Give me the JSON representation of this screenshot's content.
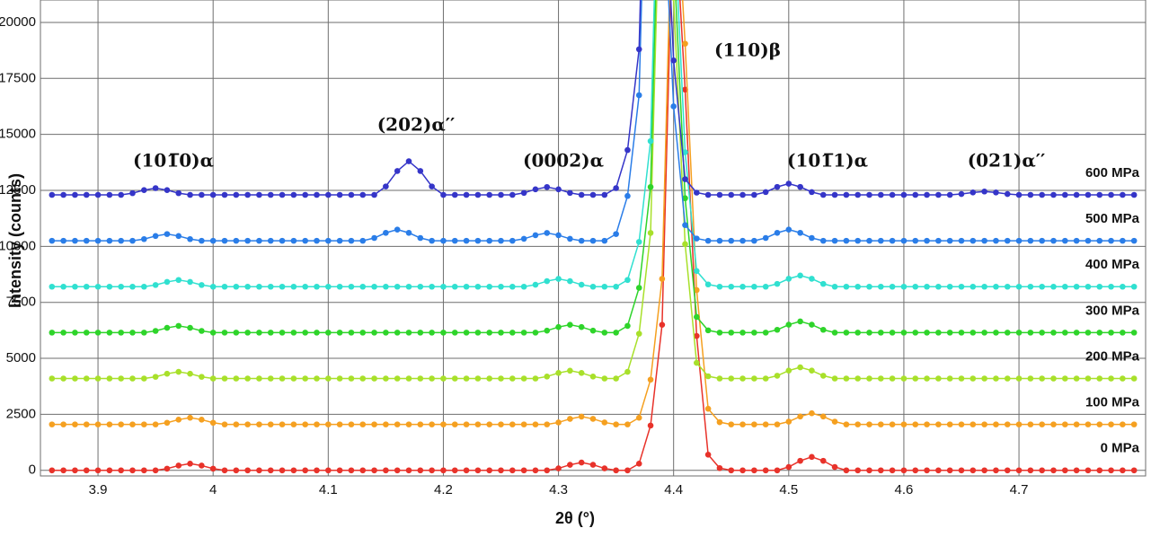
{
  "chart_data": {
    "type": "line",
    "x_label": "2θ (°)",
    "y_label": "Intensity (counts)",
    "annotations": [
      "(101̅0)α",
      "(202)α′′",
      "(0002)α",
      "(110)β",
      "(101̅1)α",
      "(021)α′′"
    ],
    "xlim": [
      3.85,
      4.81
    ],
    "ylim": [
      -250,
      21000
    ],
    "xticks": [
      3.9,
      4,
      4.1,
      4.2,
      4.3,
      4.4,
      4.5,
      4.6,
      4.7
    ],
    "yticks": [
      0,
      2500,
      5000,
      7500,
      10000,
      12500,
      15000,
      17500,
      20000
    ],
    "grid": true,
    "x": [
      3.86,
      3.87,
      3.88,
      3.89,
      3.9,
      3.91,
      3.92,
      3.93,
      3.94,
      3.95,
      3.96,
      3.97,
      3.98,
      3.99,
      4,
      4.01,
      4.02,
      4.03,
      4.04,
      4.05,
      4.06,
      4.07,
      4.08,
      4.09,
      4.1,
      4.11,
      4.12,
      4.13,
      4.14,
      4.15,
      4.16,
      4.17,
      4.18,
      4.19,
      4.2,
      4.21,
      4.22,
      4.23,
      4.24,
      4.25,
      4.26,
      4.27,
      4.28,
      4.29,
      4.3,
      4.31,
      4.32,
      4.33,
      4.34,
      4.35,
      4.36,
      4.37,
      4.38,
      4.39,
      4.4,
      4.41,
      4.42,
      4.43,
      4.44,
      4.45,
      4.46,
      4.47,
      4.48,
      4.49,
      4.5,
      4.51,
      4.52,
      4.53,
      4.54,
      4.55,
      4.56,
      4.57,
      4.58,
      4.59,
      4.6,
      4.61,
      4.62,
      4.63,
      4.64,
      4.65,
      4.66,
      4.67,
      4.68,
      4.69,
      4.7,
      4.71,
      4.72,
      4.73,
      4.74,
      4.75,
      4.76,
      4.77,
      4.78,
      4.79,
      4.8
    ],
    "series": [
      {
        "name": "0 MPa",
        "color": "#e8322a",
        "values": [
          0,
          0,
          0,
          0,
          0,
          0,
          0,
          0,
          0,
          0,
          75,
          213,
          300,
          213,
          75,
          0,
          0,
          0,
          0,
          0,
          0,
          0,
          0,
          0,
          0,
          0,
          0,
          0,
          0,
          0,
          0,
          0,
          0,
          0,
          0,
          0,
          0,
          0,
          0,
          0,
          0,
          0,
          0,
          0,
          88,
          248,
          350,
          248,
          88,
          0,
          0,
          300,
          2000,
          6500,
          26000,
          17000,
          6000,
          700,
          100,
          0,
          0,
          0,
          0,
          0,
          150,
          426,
          600,
          426,
          150,
          0,
          0,
          0,
          0,
          0,
          0,
          0,
          0,
          0,
          0,
          0,
          0,
          0,
          0,
          0,
          0,
          0,
          0,
          0,
          0,
          0,
          0,
          0,
          0,
          0,
          0
        ]
      },
      {
        "name": "100 MPa",
        "color": "#f5a020",
        "values": [
          2050,
          2050,
          2050,
          2050,
          2050,
          2050,
          2050,
          2050,
          2050,
          2050,
          2125,
          2263,
          2350,
          2263,
          2125,
          2050,
          2050,
          2050,
          2050,
          2050,
          2050,
          2050,
          2050,
          2050,
          2050,
          2050,
          2050,
          2050,
          2050,
          2050,
          2050,
          2050,
          2050,
          2050,
          2050,
          2050,
          2050,
          2050,
          2050,
          2050,
          2050,
          2050,
          2050,
          2050,
          2138,
          2298,
          2400,
          2298,
          2138,
          2050,
          2050,
          2350,
          4050,
          8550,
          28050,
          19050,
          8050,
          2750,
          2150,
          2050,
          2050,
          2050,
          2050,
          2050,
          2175,
          2405,
          2550,
          2405,
          2175,
          2050,
          2050,
          2050,
          2050,
          2050,
          2050,
          2050,
          2050,
          2050,
          2050,
          2050,
          2050,
          2050,
          2050,
          2050,
          2050,
          2050,
          2050,
          2050,
          2050,
          2050,
          2050,
          2050,
          2050,
          2050,
          2050
        ]
      },
      {
        "name": "200 MPa",
        "color": "#a8e02a",
        "values": [
          4100,
          4100,
          4100,
          4100,
          4100,
          4100,
          4100,
          4100,
          4100,
          4175,
          4313,
          4400,
          4313,
          4175,
          4100,
          4100,
          4100,
          4100,
          4100,
          4100,
          4100,
          4100,
          4100,
          4100,
          4100,
          4100,
          4100,
          4100,
          4100,
          4100,
          4100,
          4100,
          4100,
          4100,
          4100,
          4100,
          4100,
          4100,
          4100,
          4100,
          4100,
          4100,
          4100,
          4188,
          4348,
          4450,
          4348,
          4188,
          4100,
          4100,
          4400,
          6100,
          10600,
          30100,
          21100,
          10100,
          4800,
          4200,
          4100,
          4100,
          4100,
          4100,
          4100,
          4225,
          4455,
          4600,
          4455,
          4225,
          4100,
          4100,
          4100,
          4100,
          4100,
          4100,
          4100,
          4100,
          4100,
          4100,
          4100,
          4100,
          4100,
          4100,
          4100,
          4100,
          4100,
          4100,
          4100,
          4100,
          4100,
          4100,
          4100,
          4100,
          4100,
          4100,
          4100
        ]
      },
      {
        "name": "300 MPa",
        "color": "#2ed42a",
        "values": [
          6150,
          6150,
          6150,
          6150,
          6150,
          6150,
          6150,
          6150,
          6150,
          6225,
          6363,
          6450,
          6363,
          6225,
          6150,
          6150,
          6150,
          6150,
          6150,
          6150,
          6150,
          6150,
          6150,
          6150,
          6150,
          6150,
          6150,
          6150,
          6150,
          6150,
          6150,
          6150,
          6150,
          6150,
          6150,
          6150,
          6150,
          6150,
          6150,
          6150,
          6150,
          6150,
          6150,
          6238,
          6398,
          6500,
          6398,
          6238,
          6150,
          6150,
          6450,
          8150,
          12650,
          32150,
          23150,
          12150,
          6850,
          6250,
          6150,
          6150,
          6150,
          6150,
          6150,
          6275,
          6505,
          6650,
          6505,
          6275,
          6150,
          6150,
          6150,
          6150,
          6150,
          6150,
          6150,
          6150,
          6150,
          6150,
          6150,
          6150,
          6150,
          6150,
          6150,
          6150,
          6150,
          6150,
          6150,
          6150,
          6150,
          6150,
          6150,
          6150,
          6150,
          6150,
          6150
        ]
      },
      {
        "name": "400 MPa",
        "color": "#30e0d0",
        "values": [
          8200,
          8200,
          8200,
          8200,
          8200,
          8200,
          8200,
          8200,
          8200,
          8275,
          8413,
          8500,
          8413,
          8275,
          8200,
          8200,
          8200,
          8200,
          8200,
          8200,
          8200,
          8200,
          8200,
          8200,
          8200,
          8200,
          8200,
          8200,
          8200,
          8200,
          8200,
          8200,
          8200,
          8200,
          8200,
          8200,
          8200,
          8200,
          8200,
          8200,
          8200,
          8200,
          8288,
          8448,
          8550,
          8448,
          8288,
          8200,
          8200,
          8200,
          8500,
          10200,
          14700,
          34200,
          25200,
          14200,
          8900,
          8300,
          8200,
          8200,
          8200,
          8200,
          8200,
          8325,
          8555,
          8700,
          8555,
          8325,
          8200,
          8200,
          8200,
          8200,
          8200,
          8200,
          8200,
          8200,
          8200,
          8200,
          8200,
          8200,
          8200,
          8200,
          8200,
          8200,
          8200,
          8200,
          8200,
          8200,
          8200,
          8200,
          8200,
          8200,
          8200,
          8200,
          8200
        ]
      },
      {
        "name": "500 MPa",
        "color": "#2a7de8",
        "values": [
          10250,
          10250,
          10250,
          10250,
          10250,
          10250,
          10250,
          10250,
          10325,
          10463,
          10550,
          10463,
          10325,
          10250,
          10250,
          10250,
          10250,
          10250,
          10250,
          10250,
          10250,
          10250,
          10250,
          10250,
          10250,
          10250,
          10250,
          10250,
          10375,
          10605,
          10750,
          10605,
          10375,
          10250,
          10250,
          10250,
          10250,
          10250,
          10250,
          10250,
          10250,
          10338,
          10498,
          10600,
          10498,
          10338,
          10250,
          10250,
          10250,
          10550,
          12250,
          16750,
          36250,
          27250,
          16250,
          10950,
          10350,
          10250,
          10250,
          10250,
          10250,
          10250,
          10375,
          10605,
          10750,
          10605,
          10375,
          10250,
          10250,
          10250,
          10250,
          10250,
          10250,
          10250,
          10250,
          10250,
          10250,
          10250,
          10250,
          10250,
          10250,
          10250,
          10250,
          10250,
          10250,
          10250,
          10250,
          10250,
          10250,
          10250,
          10250,
          10250,
          10250,
          10250,
          10250
        ]
      },
      {
        "name": "600 MPa",
        "color": "#3535c8",
        "values": [
          12300,
          12300,
          12300,
          12300,
          12300,
          12300,
          12300,
          12375,
          12513,
          12600,
          12513,
          12375,
          12300,
          12300,
          12300,
          12300,
          12300,
          12300,
          12300,
          12300,
          12300,
          12300,
          12300,
          12300,
          12300,
          12300,
          12300,
          12300,
          12300,
          12675,
          13365,
          13800,
          13365,
          12675,
          12300,
          12300,
          12300,
          12300,
          12300,
          12300,
          12300,
          12388,
          12548,
          12650,
          12548,
          12388,
          12300,
          12300,
          12300,
          12600,
          14300,
          18800,
          38300,
          29300,
          18300,
          13000,
          12400,
          12300,
          12300,
          12300,
          12300,
          12300,
          12425,
          12655,
          12800,
          12655,
          12425,
          12300,
          12300,
          12300,
          12300,
          12300,
          12300,
          12300,
          12300,
          12300,
          12300,
          12300,
          12300,
          12338,
          12407,
          12450,
          12407,
          12338,
          12300,
          12300,
          12300,
          12300,
          12300,
          12300,
          12300,
          12300,
          12300,
          12300,
          12300
        ]
      }
    ]
  }
}
